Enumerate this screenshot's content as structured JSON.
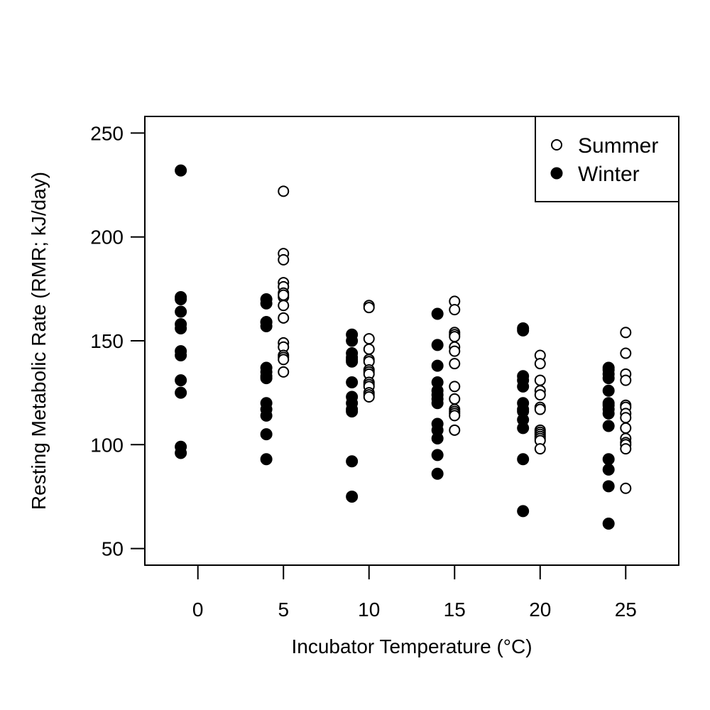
{
  "chart_data": {
    "type": "scatter",
    "title": "",
    "xlabel": "Incubator Temperature (°C)",
    "ylabel": "Resting Metabolic Rate (RMR; kJ/day)",
    "xlim": [
      -3.1,
      28.1
    ],
    "ylim": [
      42,
      258
    ],
    "x_ticks": [
      0,
      5,
      10,
      15,
      20,
      25
    ],
    "y_ticks": [
      50,
      100,
      150,
      200,
      250
    ],
    "grid": false,
    "legend_position": "top-right",
    "series": [
      {
        "name": "Summer",
        "marker": "open-circle",
        "x": [
          5,
          5,
          5,
          5,
          5,
          5,
          5,
          5,
          5,
          5,
          5,
          5,
          5,
          5,
          5,
          5,
          10,
          10,
          10,
          10,
          10,
          10,
          10,
          10,
          10,
          10,
          10,
          10,
          10,
          10,
          10,
          15,
          15,
          15,
          15,
          15,
          15,
          15,
          15,
          15,
          15,
          15,
          15,
          15,
          15,
          15,
          20,
          20,
          20,
          20,
          20,
          20,
          20,
          20,
          20,
          20,
          20,
          20,
          20,
          20,
          25,
          25,
          25,
          25,
          25,
          25,
          25,
          25,
          25,
          25,
          25,
          25,
          25,
          25
        ],
        "y": [
          222,
          192,
          189,
          178,
          176,
          173,
          171,
          167,
          161,
          149,
          147,
          143,
          142,
          141,
          135,
          172,
          167,
          166,
          151,
          146,
          141,
          140,
          136,
          135,
          134,
          130,
          129,
          128,
          125,
          124,
          123,
          169,
          165,
          154,
          153,
          152,
          147,
          145,
          139,
          128,
          122,
          117,
          116,
          115,
          114,
          107,
          143,
          139,
          131,
          126,
          124,
          118,
          117,
          107,
          106,
          105,
          104,
          103,
          102,
          98,
          154,
          144,
          134,
          131,
          119,
          118,
          115,
          113,
          108,
          103,
          101,
          100,
          98,
          79
        ]
      },
      {
        "name": "Winter",
        "marker": "filled-circle",
        "x": [
          -1,
          -1,
          -1,
          -1,
          -1,
          -1,
          -1,
          -1,
          -1,
          -1,
          -1,
          -1,
          4,
          4,
          4,
          4,
          4,
          4,
          4,
          4,
          4,
          4,
          4,
          4,
          4,
          4,
          9,
          9,
          9,
          9,
          9,
          9,
          9,
          9,
          9,
          9,
          9,
          9,
          9,
          14,
          14,
          14,
          14,
          14,
          14,
          14,
          14,
          14,
          14,
          14,
          14,
          14,
          19,
          19,
          19,
          19,
          19,
          19,
          19,
          19,
          19,
          19,
          19,
          19,
          24,
          24,
          24,
          24,
          24,
          24,
          24,
          24,
          24,
          24,
          24,
          24,
          24,
          24
        ],
        "y": [
          232,
          171,
          170,
          164,
          158,
          156,
          145,
          143,
          131,
          125,
          99,
          96,
          170,
          168,
          159,
          157,
          137,
          135,
          133,
          132,
          120,
          117,
          114,
          105,
          93,
          159,
          153,
          150,
          144,
          142,
          140,
          130,
          123,
          120,
          117,
          116,
          92,
          75,
          141,
          163,
          148,
          138,
          130,
          126,
          122,
          110,
          107,
          103,
          95,
          86,
          124,
          120,
          156,
          155,
          133,
          131,
          128,
          120,
          116,
          112,
          108,
          93,
          68,
          117,
          137,
          136,
          132,
          126,
          120,
          119,
          117,
          115,
          109,
          93,
          88,
          80,
          62,
          134
        ]
      }
    ]
  }
}
